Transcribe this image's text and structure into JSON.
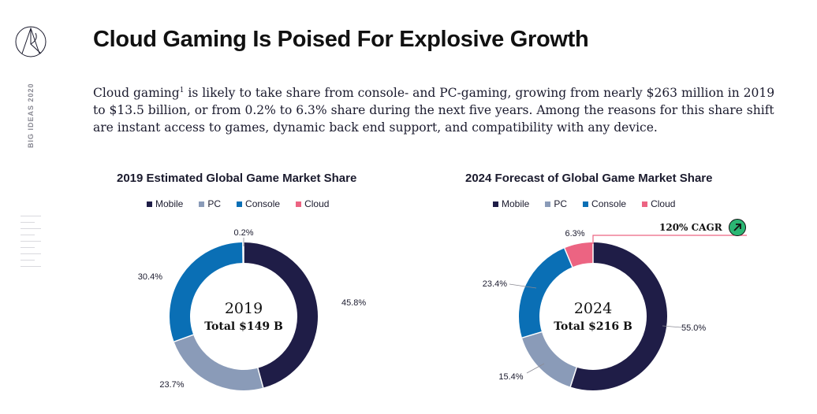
{
  "sidebar": {
    "brand_label": "BIG IDEAS 2020"
  },
  "header": {
    "title": "Cloud Gaming Is Poised For Explosive Growth"
  },
  "intro": {
    "before_sup": "Cloud gaming",
    "sup": "1",
    "after_sup": " is likely to take share from console- and PC-gaming, growing from nearly $263 million in 2019 to $13.5 billion, or from 0.2% to 6.3% share during the next five years. Among the reasons for this share shift are instant access to games, dynamic back end support, and compatibility with any device."
  },
  "colors": {
    "mobile": "#1f1d47",
    "pc": "#8a9bb8",
    "console": "#0a6fb5",
    "cloud": "#ec6482"
  },
  "chart_data": [
    {
      "type": "pie",
      "title": "2019 Estimated Global Game Market Share",
      "center_year": "2019",
      "center_total": "Total $149 B",
      "categories": [
        "Mobile",
        "PC",
        "Console",
        "Cloud"
      ],
      "values": [
        45.8,
        23.7,
        30.4,
        0.2
      ],
      "labels": [
        "45.8%",
        "23.7%",
        "30.4%",
        "0.2%"
      ],
      "legend": "top"
    },
    {
      "type": "pie",
      "title": "2024 Forecast of Global Game Market Share",
      "center_year": "2024",
      "center_total": "Total $216 B",
      "categories": [
        "Mobile",
        "PC",
        "Console",
        "Cloud"
      ],
      "values": [
        55.0,
        15.4,
        23.4,
        6.3
      ],
      "labels": [
        "55.0%",
        "15.4%",
        "23.4%",
        "6.3%"
      ],
      "legend": "top",
      "annotation": "120% CAGR"
    }
  ]
}
